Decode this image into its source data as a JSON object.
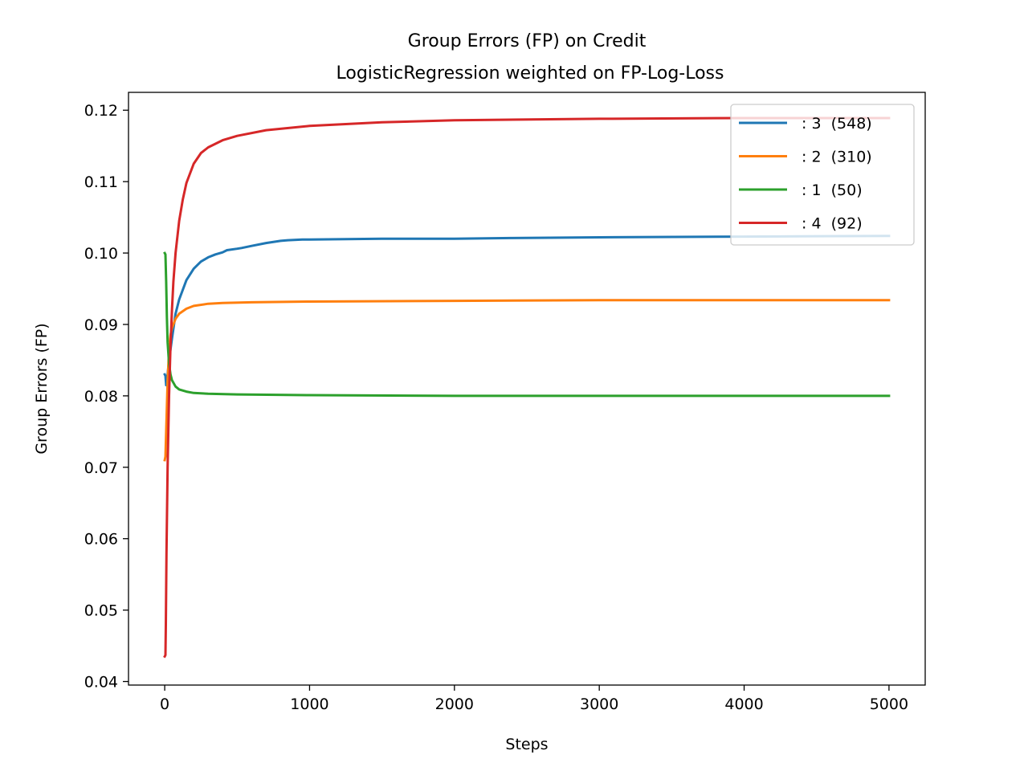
{
  "chart_data": {
    "type": "line",
    "title": "Group Errors (FP) on Credit",
    "subtitle": "LogisticRegression weighted on FP-Log-Loss",
    "xlabel": "Steps",
    "ylabel": "Group Errors (FP)",
    "xlim": [
      -250,
      5250
    ],
    "ylim": [
      0.0395,
      0.1225
    ],
    "xticks": [
      0,
      1000,
      2000,
      3000,
      4000,
      5000
    ],
    "xtick_labels": [
      "0",
      "1000",
      "2000",
      "3000",
      "4000",
      "5000"
    ],
    "yticks": [
      0.04,
      0.05,
      0.06,
      0.07,
      0.08,
      0.09,
      0.1,
      0.11,
      0.12
    ],
    "ytick_labels": [
      "0.04",
      "0.05",
      "0.06",
      "0.07",
      "0.08",
      "0.09",
      "0.10",
      "0.11",
      "0.12"
    ],
    "grid": false,
    "legend_position": "top-right",
    "series": [
      {
        "name": ": 3  (548)",
        "color": "#1f77b4",
        "points": [
          [
            0,
            0.083
          ],
          [
            5,
            0.0828
          ],
          [
            10,
            0.0815
          ],
          [
            20,
            0.083
          ],
          [
            30,
            0.085
          ],
          [
            50,
            0.088
          ],
          [
            75,
            0.0915
          ],
          [
            100,
            0.0935
          ],
          [
            150,
            0.0962
          ],
          [
            200,
            0.0978
          ],
          [
            250,
            0.0988
          ],
          [
            300,
            0.0994
          ],
          [
            350,
            0.0998
          ],
          [
            400,
            0.1001
          ],
          [
            430,
            0.1004
          ],
          [
            500,
            0.1006
          ],
          [
            530,
            0.1007
          ],
          [
            600,
            0.101
          ],
          [
            700,
            0.1014
          ],
          [
            800,
            0.1017
          ],
          [
            850,
            0.1018
          ],
          [
            950,
            0.1019
          ],
          [
            1000,
            0.1019
          ],
          [
            1500,
            0.102
          ],
          [
            2000,
            0.102
          ],
          [
            2400,
            0.1021
          ],
          [
            3000,
            0.1022
          ],
          [
            4000,
            0.1023
          ],
          [
            5000,
            0.1024
          ]
        ]
      },
      {
        "name": ": 2  (310)",
        "color": "#ff7f0e",
        "points": [
          [
            0,
            0.071
          ],
          [
            5,
            0.0715
          ],
          [
            10,
            0.075
          ],
          [
            20,
            0.082
          ],
          [
            30,
            0.0865
          ],
          [
            40,
            0.0885
          ],
          [
            50,
            0.0895
          ],
          [
            75,
            0.0908
          ],
          [
            100,
            0.0915
          ],
          [
            150,
            0.0922
          ],
          [
            200,
            0.0926
          ],
          [
            300,
            0.0929
          ],
          [
            400,
            0.093
          ],
          [
            600,
            0.0931
          ],
          [
            1000,
            0.0932
          ],
          [
            2000,
            0.0933
          ],
          [
            3000,
            0.0934
          ],
          [
            4000,
            0.0934
          ],
          [
            5000,
            0.0934
          ]
        ]
      },
      {
        "name": ": 1  (50)",
        "color": "#2ca02c",
        "points": [
          [
            0,
            0.1
          ],
          [
            5,
            0.0998
          ],
          [
            10,
            0.096
          ],
          [
            15,
            0.091
          ],
          [
            20,
            0.0875
          ],
          [
            30,
            0.0845
          ],
          [
            40,
            0.083
          ],
          [
            50,
            0.0822
          ],
          [
            75,
            0.0813
          ],
          [
            100,
            0.0809
          ],
          [
            150,
            0.0806
          ],
          [
            200,
            0.0804
          ],
          [
            300,
            0.0803
          ],
          [
            500,
            0.0802
          ],
          [
            1000,
            0.0801
          ],
          [
            2000,
            0.08
          ],
          [
            3000,
            0.08
          ],
          [
            4000,
            0.08
          ],
          [
            5000,
            0.08
          ]
        ]
      },
      {
        "name": ": 4  (92)",
        "color": "#d62728",
        "points": [
          [
            0,
            0.0435
          ],
          [
            5,
            0.0437
          ],
          [
            8,
            0.048
          ],
          [
            12,
            0.058
          ],
          [
            20,
            0.07
          ],
          [
            30,
            0.08
          ],
          [
            40,
            0.087
          ],
          [
            50,
            0.092
          ],
          [
            60,
            0.096
          ],
          [
            75,
            0.1
          ],
          [
            100,
            0.1045
          ],
          [
            125,
            0.1075
          ],
          [
            150,
            0.1098
          ],
          [
            200,
            0.1125
          ],
          [
            250,
            0.114
          ],
          [
            300,
            0.1148
          ],
          [
            400,
            0.1158
          ],
          [
            500,
            0.1164
          ],
          [
            700,
            0.1172
          ],
          [
            1000,
            0.1178
          ],
          [
            1500,
            0.1183
          ],
          [
            2000,
            0.1186
          ],
          [
            3000,
            0.1188
          ],
          [
            4000,
            0.1189
          ],
          [
            5000,
            0.1189
          ]
        ]
      }
    ]
  }
}
